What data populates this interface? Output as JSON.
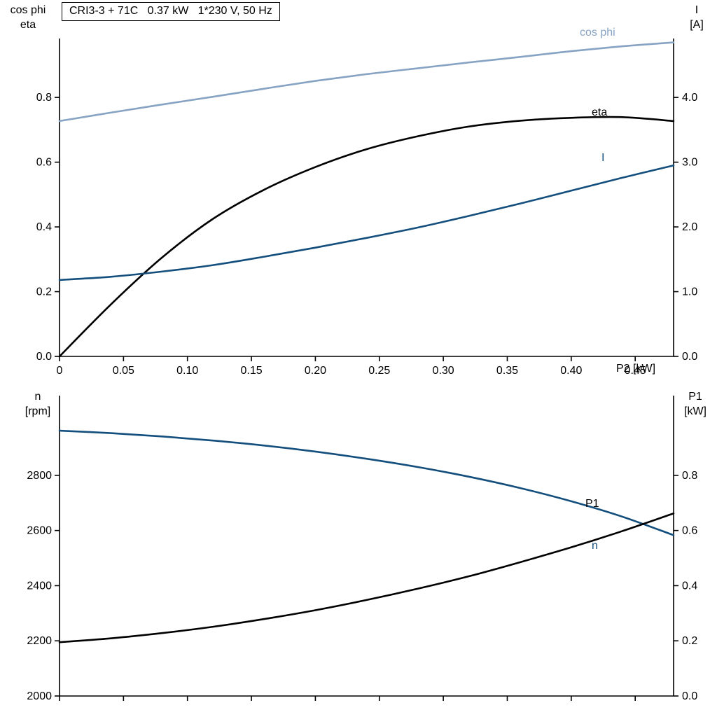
{
  "header": {
    "title": "CRI3-3 + 71C   0.37 kW   1*230 V, 50 Hz"
  },
  "labels": {
    "top_left_line1": "cos phi",
    "top_left_line2": "eta",
    "top_right_line1": "I",
    "top_right_line2": "[A]",
    "bottom_left_line1": "n",
    "bottom_left_line2": "[rpm]",
    "bottom_right_line1": "P1",
    "bottom_right_line2": "[kW]",
    "x_axis_label": "P2 [kW]"
  },
  "colors": {
    "cos_phi": "#87a3c4",
    "blue": "#134e7d",
    "black": "#000000",
    "background": "#ffffff"
  },
  "chart_data": [
    {
      "type": "line",
      "title": "CRI3-3 + 71C   0.37 kW   1*230 V, 50 Hz",
      "x": [
        0,
        0.04,
        0.08,
        0.12,
        0.16,
        0.2,
        0.24,
        0.28,
        0.32,
        0.36,
        0.4,
        0.44,
        0.48
      ],
      "x_axis": {
        "label": "P2 [kW]",
        "min": 0,
        "max": 0.48,
        "tick_values": [
          0,
          0.05,
          0.1,
          0.15,
          0.2,
          0.25,
          0.3,
          0.35,
          0.4,
          0.45
        ],
        "tick_labels": [
          "0",
          "0.05",
          "0.10",
          "0.15",
          "0.20",
          "0.25",
          "0.30",
          "0.35",
          "0.40",
          "0.45"
        ]
      },
      "left_axis": {
        "label": "cos phi / eta",
        "min": 0,
        "max": 0.982,
        "tick_values": [
          0.0,
          0.2,
          0.4,
          0.6,
          0.8
        ],
        "tick_labels": [
          "0.0",
          "0.2",
          "0.4",
          "0.6",
          "0.8"
        ]
      },
      "right_axis": {
        "label": "I [A]",
        "min": 0,
        "max": 4.91,
        "tick_values": [
          0.0,
          1.0,
          2.0,
          3.0,
          4.0
        ],
        "tick_labels": [
          "0.0",
          "1.0",
          "2.0",
          "3.0",
          "4.0"
        ]
      },
      "series": [
        {
          "name": "cos phi",
          "axis": "left",
          "color": "#87a3c4",
          "values": [
            0.727,
            0.753,
            0.778,
            0.802,
            0.827,
            0.851,
            0.872,
            0.89,
            0.908,
            0.925,
            0.943,
            0.958,
            0.97
          ]
        },
        {
          "name": "eta",
          "axis": "left",
          "color": "#000000",
          "values": [
            0.0,
            0.16,
            0.305,
            0.425,
            0.515,
            0.585,
            0.64,
            0.68,
            0.71,
            0.728,
            0.737,
            0.739,
            0.727
          ]
        },
        {
          "name": "I",
          "axis": "right",
          "color": "#134e7d",
          "values": [
            1.18,
            1.23,
            1.31,
            1.41,
            1.54,
            1.68,
            1.83,
            1.99,
            2.17,
            2.36,
            2.56,
            2.76,
            2.95
          ]
        }
      ]
    },
    {
      "type": "line",
      "title": "",
      "x": [
        0,
        0.04,
        0.08,
        0.12,
        0.16,
        0.2,
        0.24,
        0.28,
        0.32,
        0.36,
        0.4,
        0.44,
        0.48
      ],
      "x_axis": {
        "label": "",
        "min": 0,
        "max": 0.48,
        "tick_values": [
          0,
          0.05,
          0.1,
          0.15,
          0.2,
          0.25,
          0.3,
          0.35,
          0.4,
          0.45
        ],
        "tick_labels": []
      },
      "left_axis": {
        "label": "n [rpm]",
        "min": 2000,
        "max": 3089,
        "tick_values": [
          2000,
          2200,
          2400,
          2600,
          2800
        ],
        "tick_labels": [
          "2000",
          "2200",
          "2400",
          "2600",
          "2800"
        ]
      },
      "right_axis": {
        "label": "P1 [kW]",
        "min": 0,
        "max": 1.089,
        "tick_values": [
          0.0,
          0.2,
          0.4,
          0.6,
          0.8
        ],
        "tick_labels": [
          "0.0",
          "0.2",
          "0.4",
          "0.6",
          "0.8"
        ]
      },
      "series": [
        {
          "name": "n",
          "axis": "left",
          "color": "#134e7d",
          "values": [
            2962,
            2953,
            2941,
            2926,
            2908,
            2886,
            2860,
            2830,
            2795,
            2754,
            2706,
            2650,
            2583
          ]
        },
        {
          "name": "P1",
          "axis": "right",
          "color": "#000000",
          "values": [
            0.195,
            0.209,
            0.228,
            0.251,
            0.279,
            0.311,
            0.348,
            0.389,
            0.434,
            0.485,
            0.539,
            0.598,
            0.662
          ]
        }
      ]
    }
  ]
}
